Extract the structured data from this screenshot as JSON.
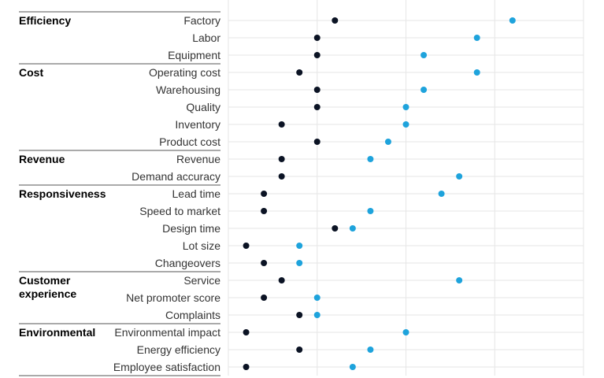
{
  "chart_data": {
    "type": "scatter",
    "title": "",
    "xlabel": "",
    "ylabel": "",
    "xlim": [
      0,
      20
    ],
    "grid": true,
    "groups": [
      {
        "name": "Efficiency",
        "rows": [
          {
            "label": "Factory",
            "low": 6,
            "high": 16
          },
          {
            "label": "Labor",
            "low": 5,
            "high": 14
          },
          {
            "label": "Equipment",
            "low": 5,
            "high": 11
          }
        ]
      },
      {
        "name": "Cost",
        "rows": [
          {
            "label": "Operating cost",
            "low": 4,
            "high": 14
          },
          {
            "label": "Warehousing",
            "low": 5,
            "high": 11
          },
          {
            "label": "Quality",
            "low": 5,
            "high": 10
          },
          {
            "label": "Inventory",
            "low": 3,
            "high": 10
          },
          {
            "label": "Product cost",
            "low": 5,
            "high": 9
          }
        ]
      },
      {
        "name": "Revenue",
        "rows": [
          {
            "label": "Revenue",
            "low": 3,
            "high": 8
          },
          {
            "label": "Demand accuracy",
            "low": 3,
            "high": 13
          }
        ]
      },
      {
        "name": "Responsiveness",
        "rows": [
          {
            "label": "Lead time",
            "low": 2,
            "high": 12
          },
          {
            "label": "Speed to market",
            "low": 2,
            "high": 8
          },
          {
            "label": "Design time",
            "low": 6,
            "high": 7
          },
          {
            "label": "Lot size",
            "low": 1,
            "high": 4
          },
          {
            "label": "Changeovers",
            "low": 2,
            "high": 4
          }
        ]
      },
      {
        "name": "Customer experience",
        "rows": [
          {
            "label": "Service",
            "low": 3,
            "high": 13
          },
          {
            "label": "Net promoter score",
            "low": 2,
            "high": 5
          },
          {
            "label": "Complaints",
            "low": 4,
            "high": 5
          }
        ]
      },
      {
        "name": "Environmental",
        "rows": [
          {
            "label": "Environmental impact",
            "low": 1,
            "high": 10
          },
          {
            "label": "Energy efficiency",
            "low": 4,
            "high": 8
          },
          {
            "label": "Employee satisfaction",
            "low": 1,
            "high": 7
          }
        ]
      }
    ],
    "colors": {
      "low": "#0b1324",
      "high": "#1ea3dc",
      "grid": "#e6e6e6",
      "rule": "#555555"
    }
  }
}
